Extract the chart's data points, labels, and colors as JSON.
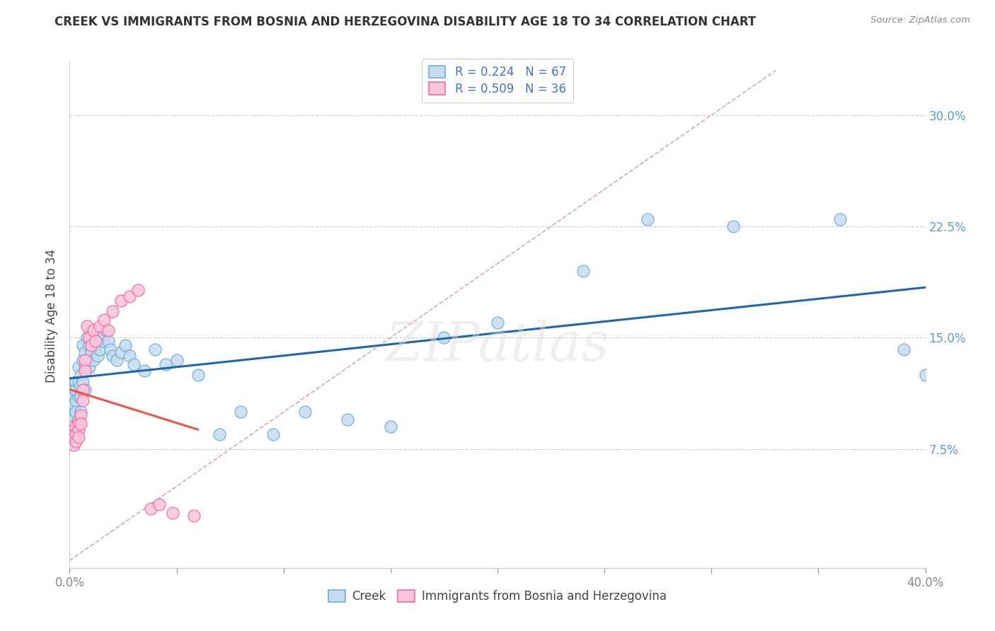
{
  "title": "CREEK VS IMMIGRANTS FROM BOSNIA AND HERZEGOVINA DISABILITY AGE 18 TO 34 CORRELATION CHART",
  "source": "Source: ZipAtlas.com",
  "ylabel": "Disability Age 18 to 34",
  "ytick_labels": [
    "7.5%",
    "15.0%",
    "22.5%",
    "30.0%"
  ],
  "ytick_values": [
    0.075,
    0.15,
    0.225,
    0.3
  ],
  "xlim": [
    0.0,
    0.4
  ],
  "ylim": [
    -0.005,
    0.335
  ],
  "legend1_label": "Creek",
  "legend2_label": "Immigrants from Bosnia and Herzegovina",
  "R1": "0.224",
  "N1": "67",
  "R2": "0.509",
  "N2": "36",
  "creek_color": "#6baed6",
  "creek_fill": "#c6dbef",
  "bosnia_color": "#f768a1",
  "bosnia_fill": "#fcc5dc",
  "trend1_color": "#2166ac",
  "trend2_color": "#e8574a",
  "diagonal_color": "#d4a0a0",
  "creek_x": [
    0.001,
    0.001,
    0.001,
    0.002,
    0.002,
    0.002,
    0.002,
    0.003,
    0.003,
    0.003,
    0.003,
    0.003,
    0.004,
    0.004,
    0.004,
    0.004,
    0.005,
    0.005,
    0.005,
    0.005,
    0.006,
    0.006,
    0.006,
    0.007,
    0.007,
    0.007,
    0.008,
    0.008,
    0.009,
    0.009,
    0.01,
    0.01,
    0.011,
    0.011,
    0.012,
    0.013,
    0.014,
    0.015,
    0.016,
    0.017,
    0.018,
    0.019,
    0.02,
    0.022,
    0.024,
    0.026,
    0.028,
    0.03,
    0.035,
    0.04,
    0.045,
    0.05,
    0.06,
    0.07,
    0.08,
    0.095,
    0.11,
    0.13,
    0.15,
    0.175,
    0.2,
    0.24,
    0.27,
    0.31,
    0.36,
    0.39,
    0.4
  ],
  "creek_y": [
    0.115,
    0.105,
    0.095,
    0.115,
    0.11,
    0.105,
    0.095,
    0.12,
    0.115,
    0.108,
    0.1,
    0.09,
    0.13,
    0.12,
    0.11,
    0.095,
    0.125,
    0.118,
    0.11,
    0.1,
    0.145,
    0.135,
    0.12,
    0.14,
    0.13,
    0.115,
    0.15,
    0.135,
    0.145,
    0.13,
    0.155,
    0.14,
    0.15,
    0.135,
    0.145,
    0.138,
    0.142,
    0.148,
    0.152,
    0.155,
    0.148,
    0.142,
    0.138,
    0.135,
    0.14,
    0.145,
    0.138,
    0.132,
    0.128,
    0.142,
    0.132,
    0.135,
    0.125,
    0.085,
    0.1,
    0.085,
    0.1,
    0.095,
    0.09,
    0.15,
    0.16,
    0.195,
    0.23,
    0.225,
    0.23,
    0.142,
    0.125
  ],
  "bosnia_x": [
    0.001,
    0.001,
    0.001,
    0.001,
    0.002,
    0.002,
    0.002,
    0.002,
    0.003,
    0.003,
    0.003,
    0.004,
    0.004,
    0.004,
    0.005,
    0.005,
    0.006,
    0.006,
    0.007,
    0.007,
    0.008,
    0.009,
    0.01,
    0.011,
    0.012,
    0.014,
    0.016,
    0.018,
    0.02,
    0.024,
    0.028,
    0.032,
    0.038,
    0.042,
    0.048,
    0.058
  ],
  "bosnia_y": [
    0.088,
    0.09,
    0.085,
    0.082,
    0.088,
    0.085,
    0.082,
    0.078,
    0.09,
    0.085,
    0.08,
    0.092,
    0.088,
    0.083,
    0.098,
    0.092,
    0.115,
    0.108,
    0.135,
    0.128,
    0.158,
    0.15,
    0.145,
    0.155,
    0.148,
    0.158,
    0.162,
    0.155,
    0.168,
    0.175,
    0.178,
    0.182,
    0.035,
    0.038,
    0.032,
    0.03
  ]
}
